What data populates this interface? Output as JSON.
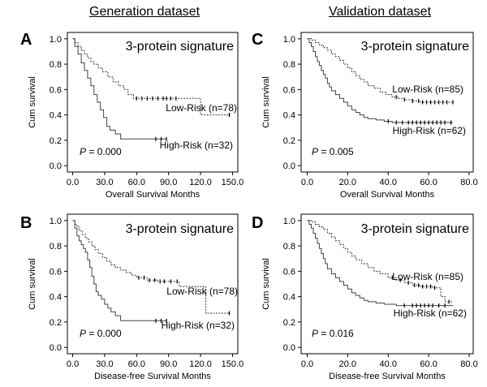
{
  "column_titles": [
    "Generation dataset",
    "Validation dataset"
  ],
  "chart_data": [
    {
      "type": "line",
      "panel_letter": "A",
      "signature_label": "3-protein signature",
      "xlabel": "Overall Survival Months",
      "ylabel": "Cum survival",
      "xlim": [
        -5,
        155
      ],
      "ylim": [
        -0.05,
        1.05
      ],
      "xticks": [
        0,
        30,
        60,
        90,
        120,
        150
      ],
      "xtick_labels": [
        "0.0",
        "30.0",
        "60.0",
        "90.0",
        "120.0",
        "150.0"
      ],
      "yticks": [
        0,
        0.2,
        0.4,
        0.6,
        0.8,
        1.0
      ],
      "ytick_labels": [
        "0.0",
        "0.2",
        "0.4",
        "0.6",
        "0.8",
        "1.0"
      ],
      "p_label": "P",
      "p_value": "= 0.000",
      "series": [
        {
          "name": "Low-Risk (n=78)",
          "style": "dotted",
          "x": [
            0,
            2,
            5,
            8,
            11,
            14,
            17,
            20,
            24,
            28,
            33,
            38,
            43,
            48,
            52,
            57,
            120,
            148
          ],
          "y": [
            1.0,
            0.97,
            0.94,
            0.91,
            0.88,
            0.85,
            0.82,
            0.8,
            0.77,
            0.74,
            0.7,
            0.66,
            0.63,
            0.6,
            0.56,
            0.53,
            0.4,
            0.4
          ],
          "censored_x": [
            60,
            65,
            70,
            75,
            80,
            85,
            88,
            92,
            97,
            147
          ]
        },
        {
          "name": "High-Risk (n=32)",
          "style": "solid",
          "x": [
            0,
            2,
            5,
            8,
            11,
            14,
            17,
            20,
            23,
            26,
            29,
            32,
            35,
            40,
            45,
            88
          ],
          "y": [
            1.0,
            0.94,
            0.88,
            0.81,
            0.75,
            0.69,
            0.63,
            0.56,
            0.5,
            0.44,
            0.38,
            0.31,
            0.28,
            0.25,
            0.21,
            0.21
          ],
          "censored_x": [
            78,
            83,
            88
          ]
        }
      ]
    },
    {
      "type": "line",
      "panel_letter": "C",
      "signature_label": "3-protein signature",
      "xlabel": "Overall Survival Months",
      "ylabel": "Cum survival",
      "xlim": [
        -3,
        82
      ],
      "ylim": [
        -0.05,
        1.05
      ],
      "xticks": [
        0,
        20,
        40,
        60,
        80
      ],
      "xtick_labels": [
        "0.0",
        "20.0",
        "40.0",
        "60.0",
        "80.0"
      ],
      "yticks": [
        0,
        0.2,
        0.4,
        0.6,
        0.8,
        1.0
      ],
      "ytick_labels": [
        "0.0",
        "0.2",
        "0.4",
        "0.6",
        "0.8",
        "1.0"
      ],
      "p_label": "P",
      "p_value": "= 0.005",
      "series": [
        {
          "name": "Low-Risk (n=85)",
          "style": "dotted",
          "x": [
            0,
            2,
            4,
            6,
            8,
            10,
            12,
            14,
            16,
            18,
            20,
            22,
            24,
            26,
            28,
            30,
            33,
            36,
            39,
            42,
            45,
            48,
            52,
            56,
            72
          ],
          "y": [
            1.0,
            0.99,
            0.97,
            0.95,
            0.93,
            0.91,
            0.88,
            0.86,
            0.83,
            0.8,
            0.77,
            0.74,
            0.71,
            0.68,
            0.66,
            0.63,
            0.61,
            0.58,
            0.56,
            0.54,
            0.53,
            0.52,
            0.51,
            0.5,
            0.5
          ],
          "censored_x": [
            44,
            48,
            52,
            55,
            57,
            59,
            61,
            63,
            65,
            67,
            69,
            72
          ]
        },
        {
          "name": "High-Risk (n=62)",
          "style": "solid",
          "x": [
            0,
            1,
            2,
            3,
            4,
            5,
            6,
            7,
            8,
            9,
            10,
            11,
            12,
            14,
            16,
            18,
            20,
            22,
            24,
            26,
            28,
            30,
            34,
            38,
            42,
            72
          ],
          "y": [
            1.0,
            0.97,
            0.94,
            0.9,
            0.86,
            0.82,
            0.79,
            0.75,
            0.72,
            0.69,
            0.65,
            0.62,
            0.59,
            0.56,
            0.53,
            0.5,
            0.47,
            0.44,
            0.42,
            0.4,
            0.38,
            0.37,
            0.36,
            0.35,
            0.34,
            0.34
          ],
          "censored_x": [
            40,
            44,
            47,
            50,
            52,
            54,
            56,
            58,
            60,
            62,
            64,
            66,
            68,
            71
          ]
        }
      ]
    },
    {
      "type": "line",
      "panel_letter": "B",
      "signature_label": "3-protein signature",
      "xlabel": "Disease-free  Survival Months",
      "ylabel": "Cum survival",
      "xlim": [
        -5,
        155
      ],
      "ylim": [
        -0.05,
        1.05
      ],
      "xticks": [
        0,
        30,
        60,
        90,
        120,
        150
      ],
      "xtick_labels": [
        "0.0",
        "30.0",
        "60.0",
        "90.0",
        "120.0",
        "150.0"
      ],
      "yticks": [
        0,
        0.2,
        0.4,
        0.6,
        0.8,
        1.0
      ],
      "ytick_labels": [
        "0.0",
        "0.2",
        "0.4",
        "0.6",
        "0.8",
        "1.0"
      ],
      "p_label": "P",
      "p_value": "= 0.000",
      "series": [
        {
          "name": "Low-Risk (n=78)",
          "style": "dotted",
          "x": [
            0,
            2,
            4,
            6,
            9,
            12,
            15,
            18,
            21,
            24,
            28,
            32,
            36,
            40,
            45,
            50,
            55,
            60,
            70,
            80,
            100,
            125,
            148
          ],
          "y": [
            1.0,
            0.97,
            0.95,
            0.92,
            0.89,
            0.86,
            0.83,
            0.8,
            0.77,
            0.74,
            0.71,
            0.68,
            0.65,
            0.63,
            0.61,
            0.59,
            0.57,
            0.55,
            0.53,
            0.52,
            0.48,
            0.27,
            0.27
          ],
          "censored_x": [
            62,
            67,
            72,
            77,
            82,
            86,
            92,
            98,
            147
          ]
        },
        {
          "name": "High-Risk (n=32)",
          "style": "solid",
          "x": [
            0,
            2,
            4,
            6,
            8,
            10,
            12,
            14,
            16,
            18,
            20,
            22,
            24,
            27,
            30,
            33,
            36,
            40,
            45,
            88
          ],
          "y": [
            1.0,
            0.94,
            0.88,
            0.84,
            0.81,
            0.78,
            0.75,
            0.69,
            0.63,
            0.56,
            0.5,
            0.44,
            0.41,
            0.38,
            0.34,
            0.31,
            0.28,
            0.25,
            0.21,
            0.21
          ],
          "censored_x": [
            78,
            83,
            88
          ]
        }
      ]
    },
    {
      "type": "line",
      "panel_letter": "D",
      "signature_label": "3-protein signature",
      "xlabel": "Disease-free  Survival Months",
      "ylabel": "Cum survival",
      "xlim": [
        -3,
        82
      ],
      "ylim": [
        -0.05,
        1.05
      ],
      "xticks": [
        0,
        20,
        40,
        60,
        80
      ],
      "xtick_labels": [
        "0.0",
        "20.0",
        "40.0",
        "60.0",
        "80.0"
      ],
      "yticks": [
        0,
        0.2,
        0.4,
        0.6,
        0.8,
        1.0
      ],
      "ytick_labels": [
        "0.0",
        "0.2",
        "0.4",
        "0.6",
        "0.8",
        "1.0"
      ],
      "p_label": "P",
      "p_value": "= 0.016",
      "series": [
        {
          "name": "Low-Risk (n=85)",
          "style": "dotted",
          "x": [
            0,
            2,
            4,
            6,
            8,
            10,
            12,
            14,
            16,
            18,
            20,
            22,
            24,
            27,
            30,
            33,
            36,
            40,
            44,
            48,
            52,
            56,
            62,
            66,
            68,
            72
          ],
          "y": [
            1.0,
            0.99,
            0.97,
            0.95,
            0.93,
            0.9,
            0.87,
            0.84,
            0.81,
            0.78,
            0.75,
            0.72,
            0.69,
            0.66,
            0.63,
            0.6,
            0.58,
            0.55,
            0.53,
            0.51,
            0.49,
            0.48,
            0.47,
            0.4,
            0.36,
            0.36
          ],
          "censored_x": [
            42,
            46,
            50,
            53,
            55,
            57,
            59,
            61,
            63,
            70
          ]
        },
        {
          "name": "High-Risk (n=62)",
          "style": "solid",
          "x": [
            0,
            1,
            2,
            3,
            4,
            5,
            6,
            7,
            8,
            9,
            10,
            12,
            14,
            16,
            18,
            20,
            22,
            24,
            26,
            28,
            30,
            34,
            38,
            44,
            72
          ],
          "y": [
            1.0,
            0.97,
            0.94,
            0.9,
            0.86,
            0.82,
            0.78,
            0.74,
            0.7,
            0.66,
            0.62,
            0.58,
            0.55,
            0.52,
            0.49,
            0.46,
            0.43,
            0.41,
            0.39,
            0.37,
            0.36,
            0.35,
            0.34,
            0.33,
            0.33
          ],
          "censored_x": [
            48,
            52,
            54,
            56,
            58,
            60,
            62,
            65,
            68
          ]
        }
      ]
    }
  ]
}
